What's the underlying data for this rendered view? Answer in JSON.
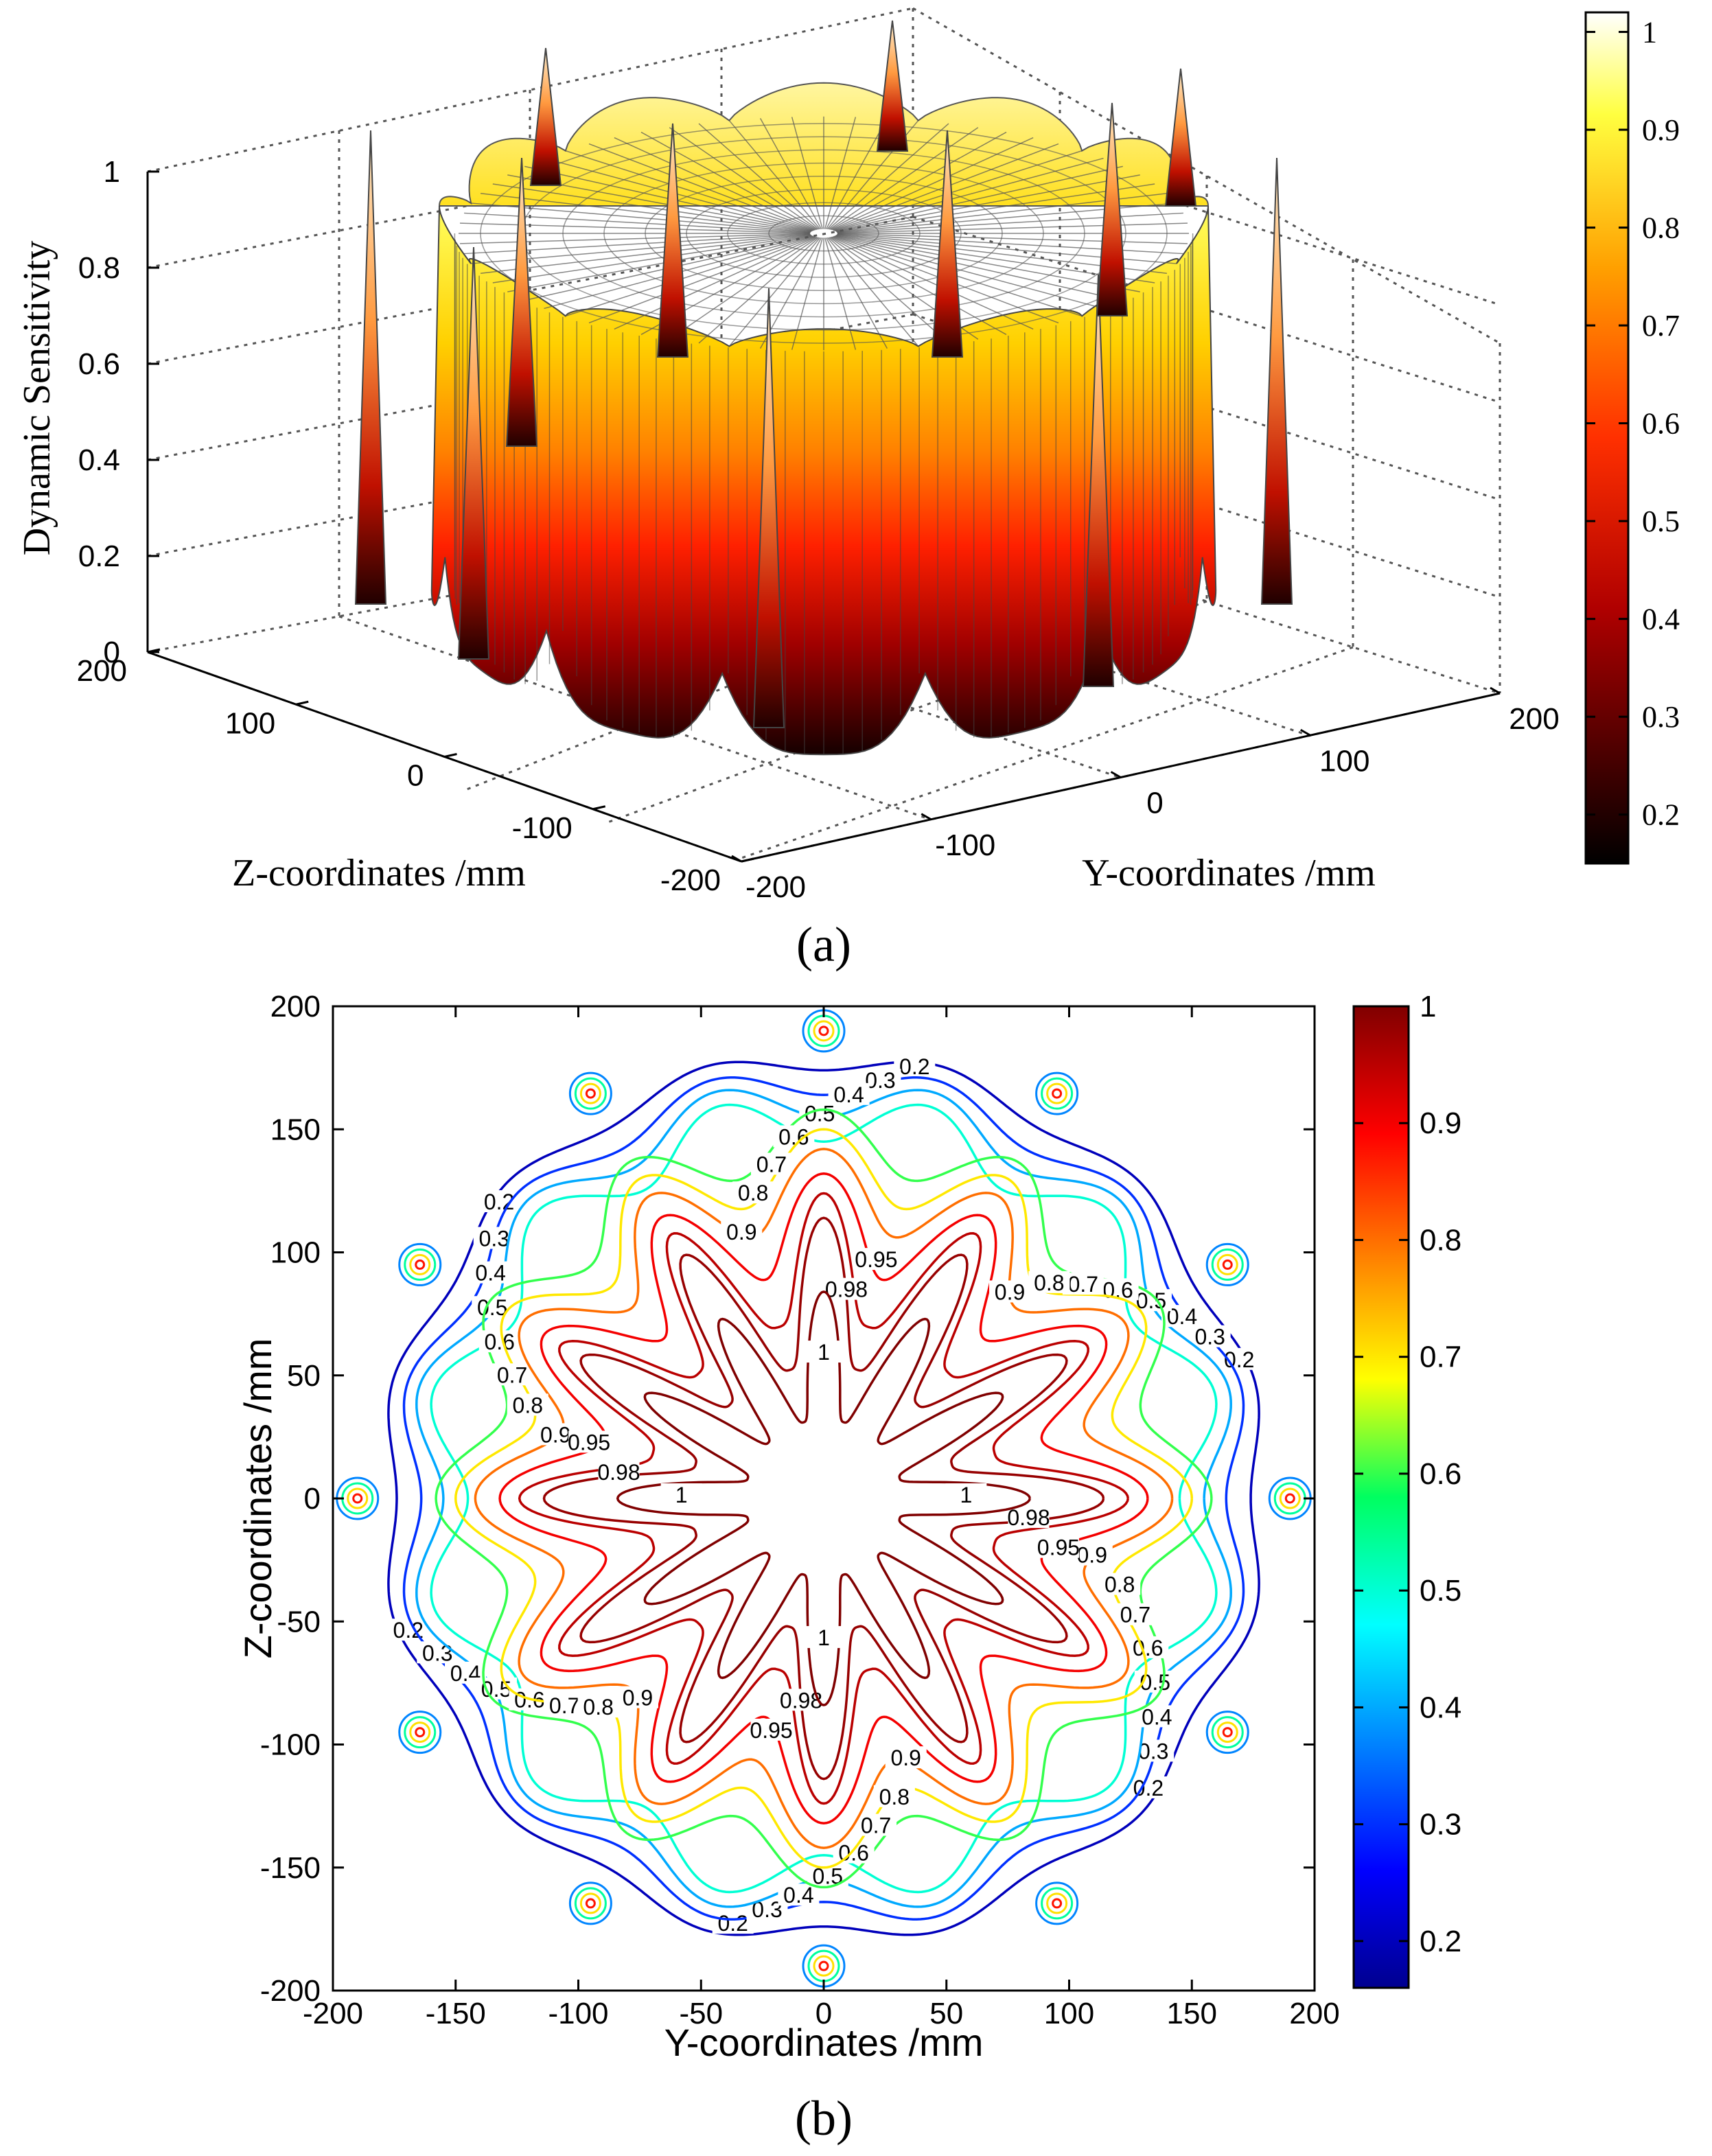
{
  "figure": {
    "panel_a_label": "(a)",
    "panel_b_label": "(b)"
  },
  "chart_data": [
    {
      "type": "surface",
      "panel": "a",
      "zlabel": "Dynamic Sensitivity",
      "xlabel": "Y-coordinates /mm",
      "ylabel": "Z-coordinates /mm",
      "zlim": [
        0,
        1
      ],
      "z_ticks": [
        0,
        0.2,
        0.4,
        0.6,
        0.8,
        1
      ],
      "z_tick_labels": [
        "0",
        "0.2",
        "0.4",
        "0.6",
        "0.8",
        "1"
      ],
      "y_ticks": [
        "-200",
        "-100",
        "0",
        "100",
        "200"
      ],
      "z_axis_ticks": [
        "200",
        "100",
        "0",
        "-100",
        "-200"
      ],
      "lobes": 12,
      "peak_spikes": 12,
      "colormap": "hot",
      "colorbar": {
        "ticks": [
          0.2,
          0.3,
          0.4,
          0.5,
          0.6,
          0.7,
          0.8,
          0.9,
          1
        ],
        "tick_labels": [
          "0.2",
          "0.3",
          "0.4",
          "0.5",
          "0.6",
          "0.7",
          "0.8",
          "0.9",
          "1"
        ],
        "range": [
          0.15,
          1.02
        ]
      },
      "grid": true
    },
    {
      "type": "contour",
      "panel": "b",
      "xlabel": "Y-coordinates /mm",
      "ylabel": "Z-coordinates /mm",
      "xlim": [
        -200,
        200
      ],
      "ylim": [
        -200,
        200
      ],
      "x_tick_labels": [
        "-200",
        "-150",
        "-100",
        "-50",
        "0",
        "50",
        "100",
        "150",
        "200"
      ],
      "y_tick_labels": [
        "200",
        "150",
        "100",
        "50",
        "0",
        "-50",
        "-100",
        "-150",
        "-200"
      ],
      "domain_radius_mm": 190,
      "lobes": 12,
      "levels": [
        0.2,
        0.3,
        0.4,
        0.5,
        0.6,
        0.7,
        0.8,
        0.9,
        0.95,
        0.98,
        1
      ],
      "level_labels": [
        "0.2",
        "0.3",
        "0.4",
        "0.5",
        "0.6",
        "0.7",
        "0.8",
        "0.9",
        "0.95",
        "0.98",
        "1"
      ],
      "colormap": "jet",
      "colorbar": {
        "ticks": [
          0.2,
          0.3,
          0.4,
          0.5,
          0.6,
          0.7,
          0.8,
          0.9,
          1
        ],
        "tick_labels": [
          "0.2",
          "0.3",
          "0.4",
          "0.5",
          "0.6",
          "0.7",
          "0.8",
          "0.9",
          "1"
        ],
        "range": [
          0.16,
          1.0
        ]
      }
    }
  ]
}
